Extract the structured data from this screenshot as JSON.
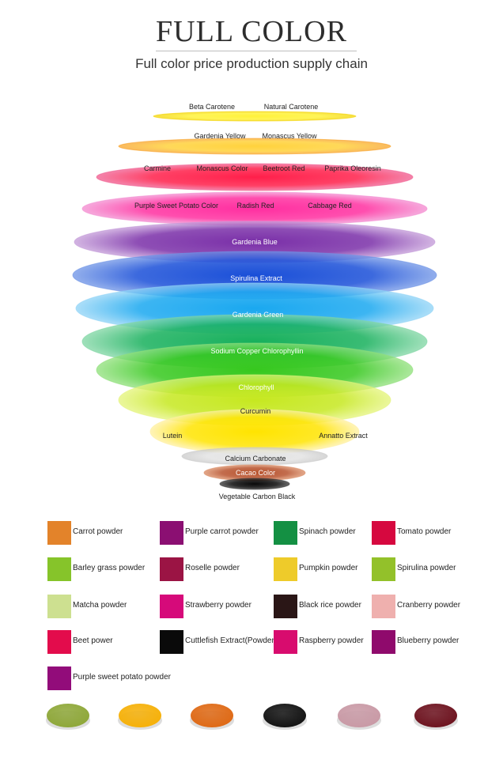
{
  "header": {
    "title": "FULL COLOR",
    "subtitle": "Full color price production supply chain"
  },
  "layers": [
    {
      "color": "#fff23a",
      "edge": "#f3d400",
      "labels": [
        "Beta Carotene",
        "Natural  Carotene"
      ]
    },
    {
      "color": "#ffd23c",
      "edge": "#f8a32a",
      "labels": [
        "Gardenia Yellow",
        "Monascus Yellow"
      ]
    },
    {
      "color": "#ff1f4a",
      "edge": "#f05a8e",
      "labels": [
        "Carmine",
        "Monascus Color",
        "Beetroot Red",
        "Paprika Oleoresin"
      ]
    },
    {
      "color": "#ff2fa0",
      "edge": "#f38bd0",
      "labels": [
        "Purple Sweet Potato Color",
        "Radish Red",
        "Cabbage Red"
      ]
    },
    {
      "color": "#7a2fa8",
      "edge": "#c39ad8",
      "labels": [
        "Gardenia Blue"
      ]
    },
    {
      "color": "#1a4fd8",
      "edge": "#6d93e6",
      "labels": [
        "Spirulina Extract"
      ]
    },
    {
      "color": "#1aa8f0",
      "edge": "#8fd3f6",
      "labels": [
        "Gardenia Green"
      ]
    },
    {
      "color": "#17b05c",
      "edge": "#7fd6a3",
      "labels": [
        "Sodium  Copper Chlorophyllin"
      ]
    },
    {
      "color": "#36c81e",
      "edge": "#8fe07a",
      "labels": [
        "Chlorophyll"
      ]
    },
    {
      "color": "#c6e820",
      "edge": "#e4f47a",
      "labels": [
        "Curcumin"
      ]
    },
    {
      "color": "#ffe400",
      "edge": "#fff0a0",
      "labels": [
        "Lutein",
        "Annatto Extract"
      ]
    },
    {
      "color": "#e3e3e3",
      "edge": "#c9c9c9",
      "labels": [
        "Calcium  Carbonate"
      ]
    },
    {
      "color": "#b8532e",
      "edge": "#d98a62",
      "labels": [
        "Cacao Color"
      ]
    },
    {
      "color": "#0a0a0a",
      "edge": "#333333",
      "labels": [
        "Vegetable Carbon Black"
      ]
    }
  ],
  "powders": [
    {
      "label": "Carrot powder",
      "color": "#e3832a"
    },
    {
      "label": "Purple carrot powder",
      "color": "#8b0f72"
    },
    {
      "label": "Spinach powder",
      "color": "#149043"
    },
    {
      "label": "Tomato powder",
      "color": "#d6083f"
    },
    {
      "label": "Barley grass powder",
      "color": "#86c42a"
    },
    {
      "label": "Roselle powder",
      "color": "#9b1444"
    },
    {
      "label": "Pumpkin powder",
      "color": "#eecb2a"
    },
    {
      "label": "Spirulina powder",
      "color": "#93c12a"
    },
    {
      "label": "Matcha powder",
      "color": "#cde090"
    },
    {
      "label": "Strawberry powder",
      "color": "#d60a7a"
    },
    {
      "label": "Black rice powder",
      "color": "#2a1616"
    },
    {
      "label": "Cranberry powder",
      "color": "#efb0ae"
    },
    {
      "label": "Beet power",
      "color": "#e30c4c"
    },
    {
      "label": "Cuttlefish Extract(Powder)",
      "color": "#0a0a0a"
    },
    {
      "label": "Raspberry powder",
      "color": "#d80c6e"
    },
    {
      "label": "Blueberry powder",
      "color": "#8f0a6c"
    },
    {
      "label": "Purple sweet potato powder",
      "color": "#920c7a"
    }
  ],
  "dishes": [
    {
      "color": "#8fa83a"
    },
    {
      "color": "#f6b10a"
    },
    {
      "color": "#df6a16"
    },
    {
      "color": "#141414"
    },
    {
      "color": "#c99aa6"
    },
    {
      "color": "#6e1420"
    }
  ]
}
